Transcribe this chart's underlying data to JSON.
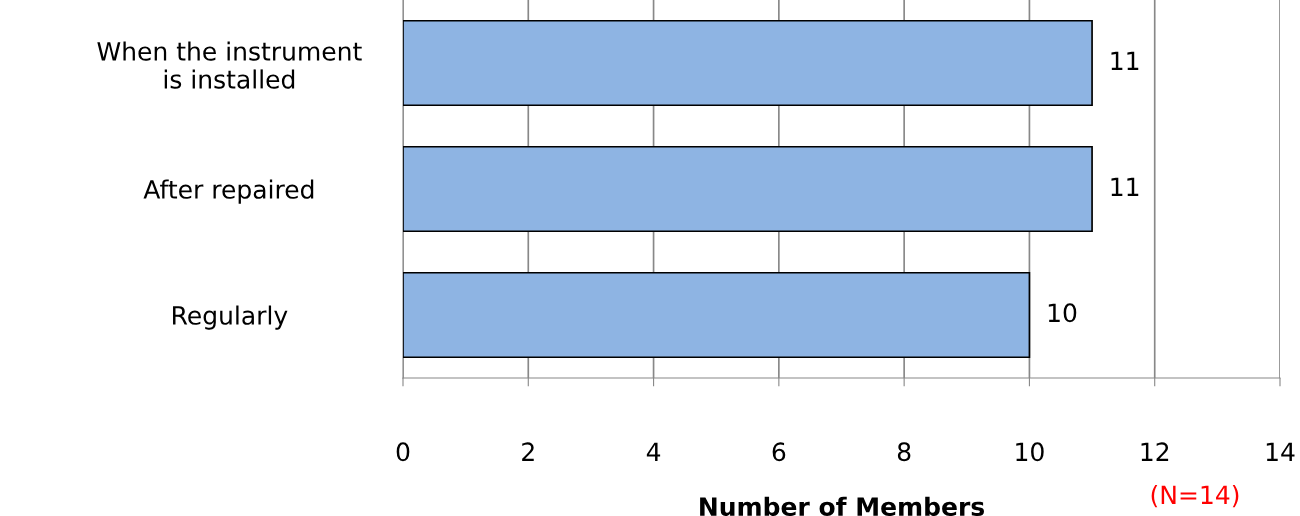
{
  "chart_data": {
    "type": "bar",
    "orientation": "horizontal",
    "categories": [
      "When the instrument\nis installed",
      "After repaired",
      "Regularly"
    ],
    "values": [
      11,
      11,
      10
    ],
    "color": "#8eb4e3",
    "xlim": [
      0,
      14
    ],
    "xticks": [
      0,
      2,
      4,
      6,
      8,
      10,
      12,
      14
    ],
    "xlabel": "Number of Members",
    "annotations": [
      "(N=14)"
    ],
    "grid": "x",
    "data_labels": true
  }
}
